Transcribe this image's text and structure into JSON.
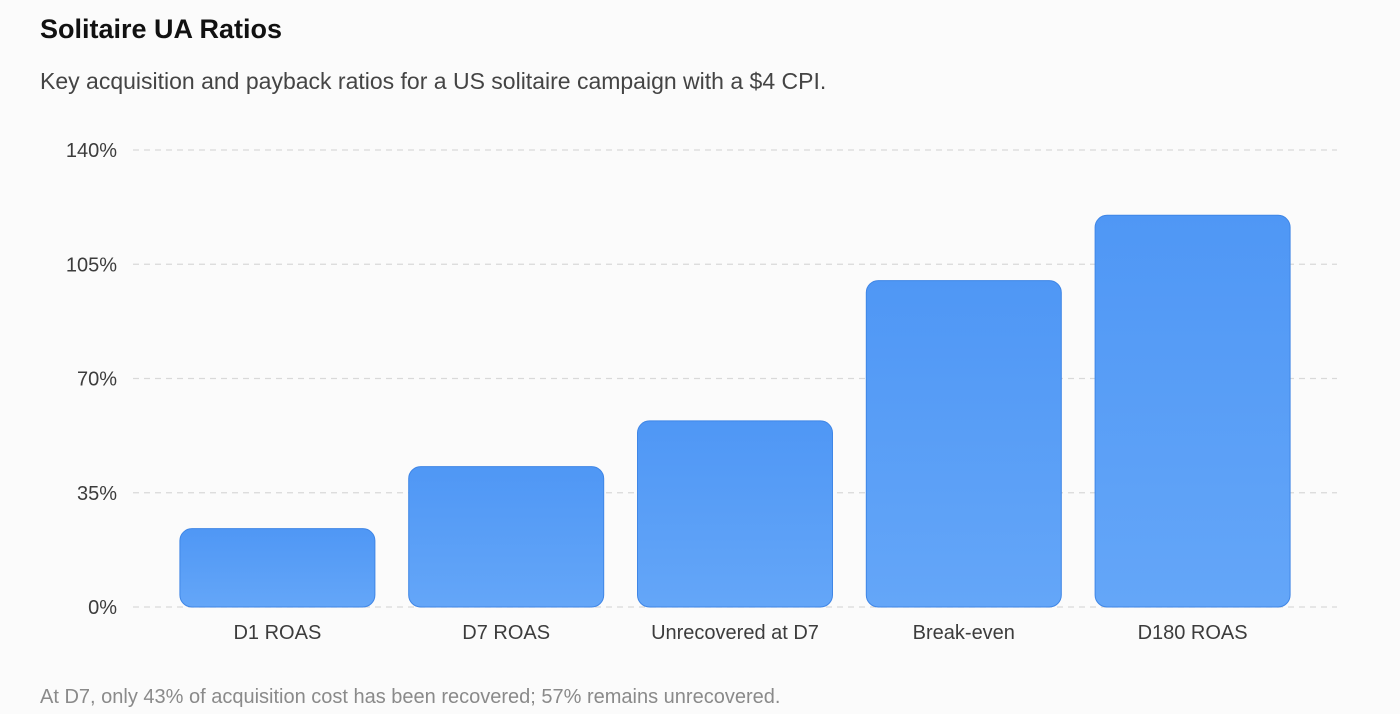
{
  "chart_data": {
    "type": "bar",
    "title": "Solitaire UA Ratios",
    "subtitle": "Key acquisition and payback ratios for a US solitaire campaign with a $4 CPI.",
    "xlabel": "",
    "ylabel": "",
    "categories": [
      "D1 ROAS",
      "D7 ROAS",
      "Unrecovered at D7",
      "Break-even",
      "D180 ROAS"
    ],
    "values": [
      24,
      43,
      57,
      100,
      120
    ],
    "ylim": [
      0,
      140
    ],
    "yticks": [
      0,
      35,
      70,
      105,
      140
    ],
    "ytick_labels": [
      "0%",
      "35%",
      "70%",
      "105%",
      "140%"
    ],
    "grid": true,
    "legend": "none",
    "footnote": "At D7, only 43% of acquisition cost has been recovered; 57% remains unrecovered.",
    "colors": {
      "bar_top": "#4f97f5",
      "bar_bottom": "#64a6f8",
      "bar_stroke": "#3f86e6",
      "grid": "#d9d9d9"
    }
  }
}
